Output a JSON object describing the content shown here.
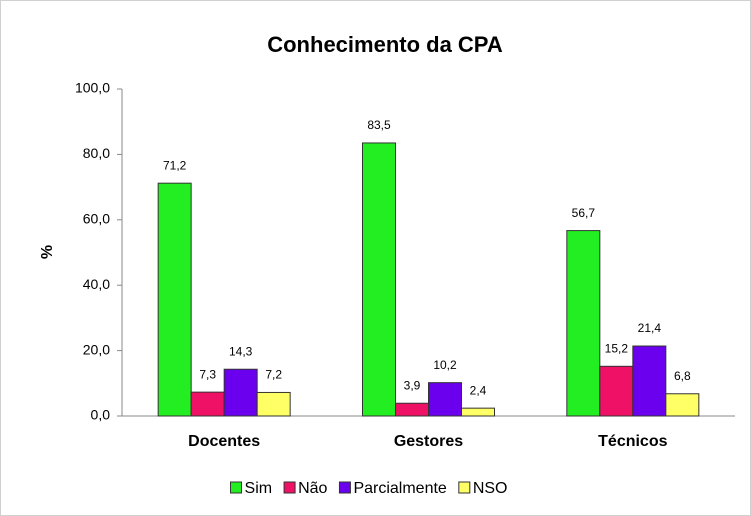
{
  "chart_data": {
    "type": "bar",
    "title": "Conhecimento da CPA",
    "ylabel": "%",
    "categories": [
      "Docentes",
      "Gestores",
      "Técnicos"
    ],
    "series": [
      {
        "name": "Sim",
        "color": "#22ee22",
        "values": [
          71.2,
          83.5,
          56.7
        ],
        "value_labels": [
          "71,2",
          "83,5",
          "56,7"
        ]
      },
      {
        "name": "Não",
        "color": "#ee1166",
        "values": [
          7.3,
          3.9,
          15.2
        ],
        "value_labels": [
          "7,3",
          "3,9",
          "15,2"
        ]
      },
      {
        "name": "Parcialmente",
        "color": "#6a00ee",
        "values": [
          14.3,
          10.2,
          21.4
        ],
        "value_labels": [
          "14,3",
          "10,2",
          "21,4"
        ]
      },
      {
        "name": "NSO",
        "color": "#ffff66",
        "values": [
          7.2,
          2.4,
          6.8
        ],
        "value_labels": [
          "7,2",
          "2,4",
          "6,8"
        ]
      }
    ],
    "ylim": [
      0,
      100
    ],
    "yticks": [
      {
        "value": 0,
        "label": "0,0"
      },
      {
        "value": 20,
        "label": "20,0"
      },
      {
        "value": 40,
        "label": "40,0"
      },
      {
        "value": 60,
        "label": "60,0"
      },
      {
        "value": 80,
        "label": "80,0"
      },
      {
        "value": 100,
        "label": "100,0"
      }
    ],
    "legend": "bottom"
  }
}
